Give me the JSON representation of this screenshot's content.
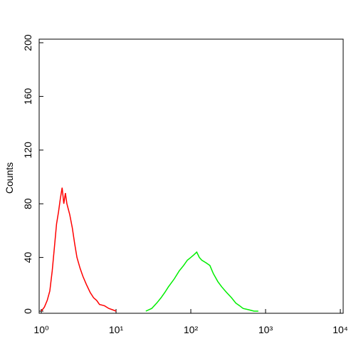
{
  "chart_data": {
    "type": "line",
    "ylabel": "Counts",
    "xscale": "log",
    "xlim": [
      1,
      10000
    ],
    "ylim": [
      0,
      200
    ],
    "xticks": [
      {
        "value": 1,
        "label": "10⁰"
      },
      {
        "value": 10,
        "label": "10¹"
      },
      {
        "value": 100,
        "label": "10²"
      },
      {
        "value": 1000,
        "label": "10³"
      },
      {
        "value": 10000,
        "label": "10⁴"
      }
    ],
    "yticks": [
      0,
      40,
      80,
      120,
      160,
      200
    ],
    "series": [
      {
        "color": "#ff0000",
        "x": [
          1.0,
          1.1,
          1.2,
          1.3,
          1.4,
          1.5,
          1.6,
          1.7,
          1.8,
          1.9,
          2.0,
          2.1,
          2.2,
          2.4,
          2.6,
          2.8,
          3.0,
          3.3,
          3.6,
          4.0,
          4.5,
          5.0,
          5.5,
          6.0,
          7.0,
          8.0,
          9.0,
          10
        ],
        "values": [
          0,
          3,
          8,
          15,
          30,
          48,
          65,
          74,
          84,
          92,
          80,
          88,
          80,
          72,
          62,
          50,
          40,
          32,
          26,
          20,
          14,
          10,
          8,
          5,
          4,
          2,
          1,
          0
        ]
      },
      {
        "color": "#00ee00",
        "x": [
          25,
          30,
          35,
          40,
          45,
          50,
          60,
          70,
          80,
          90,
          100,
          110,
          120,
          130,
          140,
          160,
          180,
          200,
          230,
          260,
          300,
          350,
          400,
          450,
          500,
          600,
          700,
          800
        ],
        "values": [
          0,
          2,
          6,
          10,
          14,
          18,
          24,
          30,
          34,
          38,
          40,
          42,
          44,
          40,
          38,
          36,
          34,
          28,
          22,
          18,
          14,
          10,
          6,
          4,
          2,
          1,
          0,
          0
        ]
      }
    ]
  }
}
